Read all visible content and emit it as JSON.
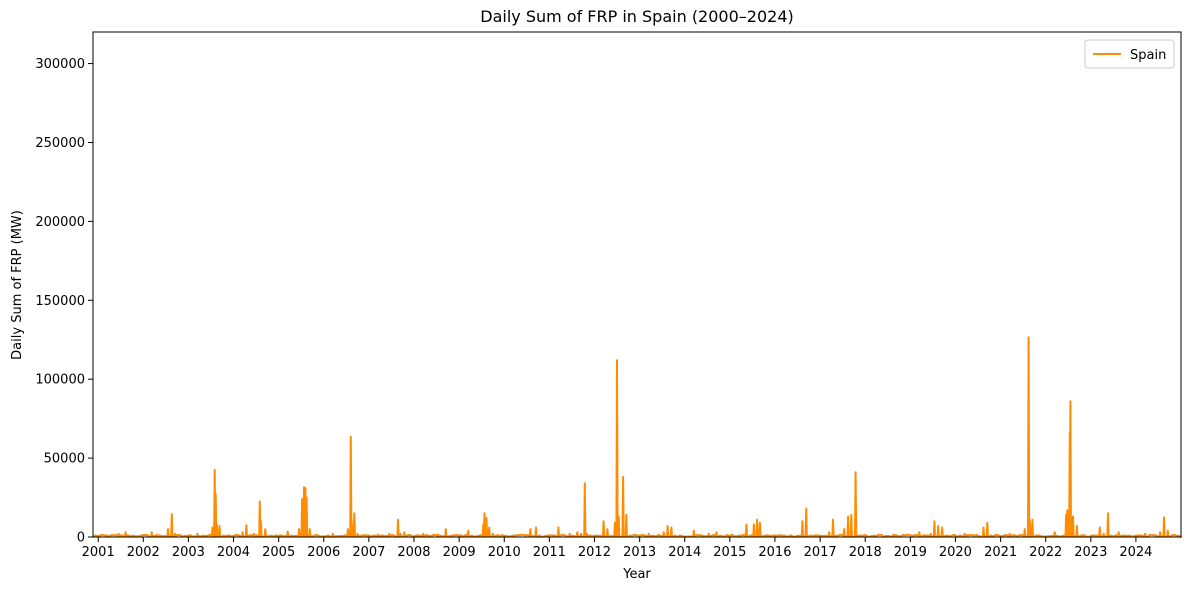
{
  "chart_data": {
    "type": "line",
    "title": "Daily Sum of FRP in Spain (2000–2024)",
    "xlabel": "Year",
    "ylabel": "Daily Sum of FRP (MW)",
    "xlim": [
      "2000-11-20",
      "2024-12-31"
    ],
    "ylim": [
      0,
      320000
    ],
    "x_ticks": [
      "2001",
      "2002",
      "2003",
      "2004",
      "2005",
      "2006",
      "2007",
      "2008",
      "2009",
      "2010",
      "2011",
      "2012",
      "2013",
      "2014",
      "2015",
      "2016",
      "2017",
      "2018",
      "2019",
      "2020",
      "2021",
      "2022",
      "2023",
      "2024"
    ],
    "y_ticks": [
      "0",
      "50000",
      "100000",
      "150000",
      "200000",
      "250000",
      "300000"
    ],
    "y_tick_values": [
      0,
      50000,
      100000,
      150000,
      200000,
      250000,
      300000
    ],
    "grid": false,
    "legend_position": "top-right",
    "series": [
      {
        "name": "Spain",
        "color": "#ff8c00",
        "points": [
          [
            "2000-11-20",
            0
          ],
          [
            "2001-06-15",
            2000
          ],
          [
            "2001-08-10",
            3000
          ],
          [
            "2001-11-15",
            500
          ],
          [
            "2002-03-10",
            3000
          ],
          [
            "2002-04-20",
            1500
          ],
          [
            "2002-07-20",
            5000
          ],
          [
            "2002-08-20",
            14500
          ],
          [
            "2002-09-15",
            2000
          ],
          [
            "2002-11-15",
            500
          ],
          [
            "2003-03-15",
            2000
          ],
          [
            "2003-05-01",
            1000
          ],
          [
            "2003-07-15",
            6000
          ],
          [
            "2003-08-02",
            42500
          ],
          [
            "2003-08-10",
            27500
          ],
          [
            "2003-08-20",
            8000
          ],
          [
            "2003-09-10",
            7000
          ],
          [
            "2003-10-15",
            1000
          ],
          [
            "2004-03-15",
            3000
          ],
          [
            "2004-04-15",
            7500
          ],
          [
            "2004-06-15",
            2000
          ],
          [
            "2004-08-01",
            22500
          ],
          [
            "2004-08-10",
            10000
          ],
          [
            "2004-09-15",
            5000
          ],
          [
            "2004-10-15",
            500
          ],
          [
            "2005-03-15",
            3500
          ],
          [
            "2005-04-15",
            1000
          ],
          [
            "2005-06-15",
            5000
          ],
          [
            "2005-07-10",
            24000
          ],
          [
            "2005-07-25",
            31500
          ],
          [
            "2005-08-05",
            31000
          ],
          [
            "2005-08-15",
            25000
          ],
          [
            "2005-09-10",
            5000
          ],
          [
            "2005-10-15",
            1000
          ],
          [
            "2006-03-15",
            2000
          ],
          [
            "2006-07-15",
            5000
          ],
          [
            "2006-08-08",
            63500
          ],
          [
            "2006-08-15",
            10000
          ],
          [
            "2006-09-05",
            15000
          ],
          [
            "2006-10-01",
            2000
          ],
          [
            "2007-03-15",
            1500
          ],
          [
            "2007-06-15",
            2000
          ],
          [
            "2007-08-25",
            11000
          ],
          [
            "2007-09-15",
            2000
          ],
          [
            "2007-10-15",
            3000
          ],
          [
            "2008-03-15",
            2000
          ],
          [
            "2008-07-15",
            1500
          ],
          [
            "2008-09-15",
            5000
          ],
          [
            "2008-10-15",
            500
          ],
          [
            "2009-03-15",
            4000
          ],
          [
            "2009-04-15",
            1000
          ],
          [
            "2009-07-15",
            8000
          ],
          [
            "2009-07-25",
            15000
          ],
          [
            "2009-08-10",
            12000
          ],
          [
            "2009-09-01",
            6000
          ],
          [
            "2009-10-01",
            2000
          ],
          [
            "2010-03-15",
            1000
          ],
          [
            "2010-08-01",
            5000
          ],
          [
            "2010-09-15",
            6000
          ],
          [
            "2010-10-15",
            1000
          ],
          [
            "2011-03-15",
            6000
          ],
          [
            "2011-06-15",
            2000
          ],
          [
            "2011-08-15",
            3000
          ],
          [
            "2011-09-15",
            2000
          ],
          [
            "2011-10-15",
            34000
          ],
          [
            "2011-11-01",
            2000
          ],
          [
            "2012-03-15",
            10000
          ],
          [
            "2012-04-15",
            5000
          ],
          [
            "2012-06-15",
            9000
          ],
          [
            "2012-07-02",
            112000
          ],
          [
            "2012-07-15",
            13000
          ],
          [
            "2012-08-20",
            38000
          ],
          [
            "2012-09-15",
            14000
          ],
          [
            "2012-10-15",
            1000
          ],
          [
            "2013-03-15",
            2000
          ],
          [
            "2013-07-15",
            3000
          ],
          [
            "2013-08-15",
            7000
          ],
          [
            "2013-09-15",
            6000
          ],
          [
            "2013-10-15",
            1000
          ],
          [
            "2014-03-15",
            4000
          ],
          [
            "2014-07-15",
            2000
          ],
          [
            "2014-09-15",
            3000
          ],
          [
            "2014-10-15",
            1000
          ],
          [
            "2015-03-15",
            1000
          ],
          [
            "2015-05-15",
            8000
          ],
          [
            "2015-07-15",
            8000
          ],
          [
            "2015-08-10",
            11000
          ],
          [
            "2015-09-01",
            9000
          ],
          [
            "2015-10-15",
            1000
          ],
          [
            "2016-03-15",
            1000
          ],
          [
            "2016-08-10",
            10000
          ],
          [
            "2016-09-10",
            18000
          ],
          [
            "2016-10-15",
            1000
          ],
          [
            "2017-03-15",
            3000
          ],
          [
            "2017-04-15",
            11000
          ],
          [
            "2017-07-15",
            5000
          ],
          [
            "2017-08-15",
            13000
          ],
          [
            "2017-09-10",
            14000
          ],
          [
            "2017-10-15",
            41000
          ],
          [
            "2017-11-01",
            1000
          ],
          [
            "2018-03-15",
            1000
          ],
          [
            "2018-08-15",
            1500
          ],
          [
            "2018-10-15",
            500
          ],
          [
            "2019-03-15",
            3000
          ],
          [
            "2019-06-15",
            2000
          ],
          [
            "2019-07-15",
            10000
          ],
          [
            "2019-08-15",
            7000
          ],
          [
            "2019-09-15",
            6000
          ],
          [
            "2019-10-15",
            1000
          ],
          [
            "2020-03-15",
            2000
          ],
          [
            "2020-08-15",
            6000
          ],
          [
            "2020-09-15",
            9000
          ],
          [
            "2020-10-15",
            1000
          ],
          [
            "2021-03-15",
            2000
          ],
          [
            "2021-07-15",
            5000
          ],
          [
            "2021-08-15",
            126500
          ],
          [
            "2021-08-25",
            10000
          ],
          [
            "2021-09-15",
            11000
          ],
          [
            "2021-10-15",
            1000
          ],
          [
            "2022-03-15",
            3000
          ],
          [
            "2022-06-15",
            14000
          ],
          [
            "2022-06-25",
            17000
          ],
          [
            "2022-07-15",
            66000
          ],
          [
            "2022-07-20",
            86000
          ],
          [
            "2022-08-10",
            13000
          ],
          [
            "2022-09-10",
            7000
          ],
          [
            "2022-10-15",
            1000
          ],
          [
            "2023-03-15",
            6000
          ],
          [
            "2023-04-15",
            2000
          ],
          [
            "2023-05-20",
            15000
          ],
          [
            "2023-08-15",
            3000
          ],
          [
            "2023-10-15",
            1000
          ],
          [
            "2024-03-15",
            2000
          ],
          [
            "2024-07-15",
            3000
          ],
          [
            "2024-08-15",
            12500
          ],
          [
            "2024-09-15",
            4000
          ],
          [
            "2024-12-31",
            0
          ]
        ]
      }
    ]
  }
}
